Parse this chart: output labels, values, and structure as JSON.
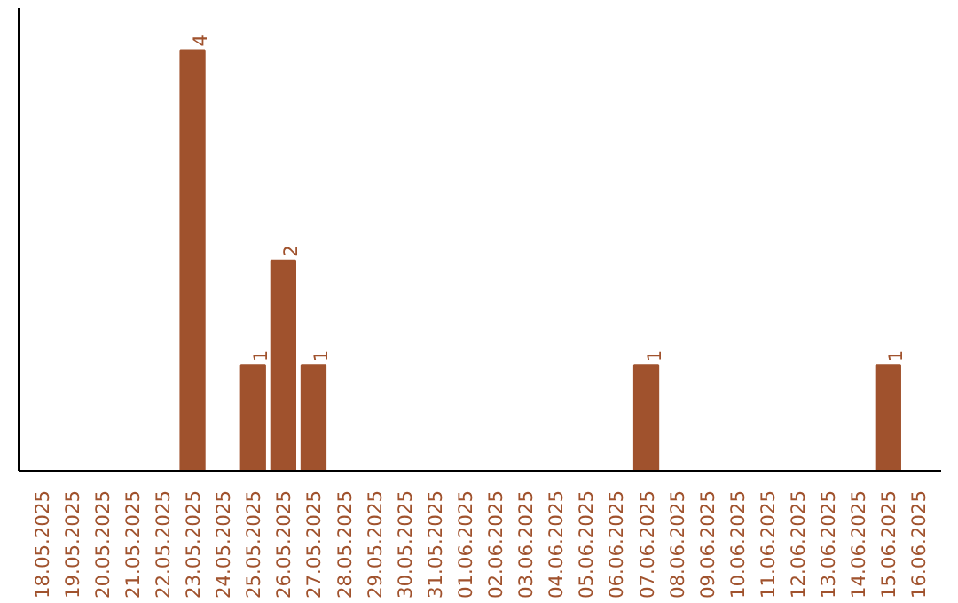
{
  "chart_data": {
    "type": "bar",
    "categories": [
      "18.05.2025",
      "19.05.2025",
      "20.05.2025",
      "21.05.2025",
      "22.05.2025",
      "23.05.2025",
      "24.05.2025",
      "25.05.2025",
      "26.05.2025",
      "27.05.2025",
      "28.05.2025",
      "29.05.2025",
      "30.05.2025",
      "31.05.2025",
      "01.06.2025",
      "02.06.2025",
      "03.06.2025",
      "04.06.2025",
      "05.06.2025",
      "06.06.2025",
      "07.06.2025",
      "08.06.2025",
      "09.06.2025",
      "10.06.2025",
      "11.06.2025",
      "12.06.2025",
      "13.06.2025",
      "14.06.2025",
      "15.06.2025",
      "16.06.2025"
    ],
    "values": [
      0,
      0,
      0,
      0,
      0,
      4,
      0,
      1,
      2,
      1,
      0,
      0,
      0,
      0,
      0,
      0,
      0,
      0,
      0,
      0,
      1,
      0,
      0,
      0,
      0,
      0,
      0,
      0,
      1,
      0
    ],
    "value_labels": [
      null,
      null,
      null,
      null,
      null,
      "4",
      null,
      "1",
      "2",
      "1",
      null,
      null,
      null,
      null,
      null,
      null,
      null,
      null,
      null,
      null,
      "1",
      null,
      null,
      null,
      null,
      null,
      null,
      null,
      "1",
      null
    ],
    "color": "#a0522d",
    "grid": false
  }
}
